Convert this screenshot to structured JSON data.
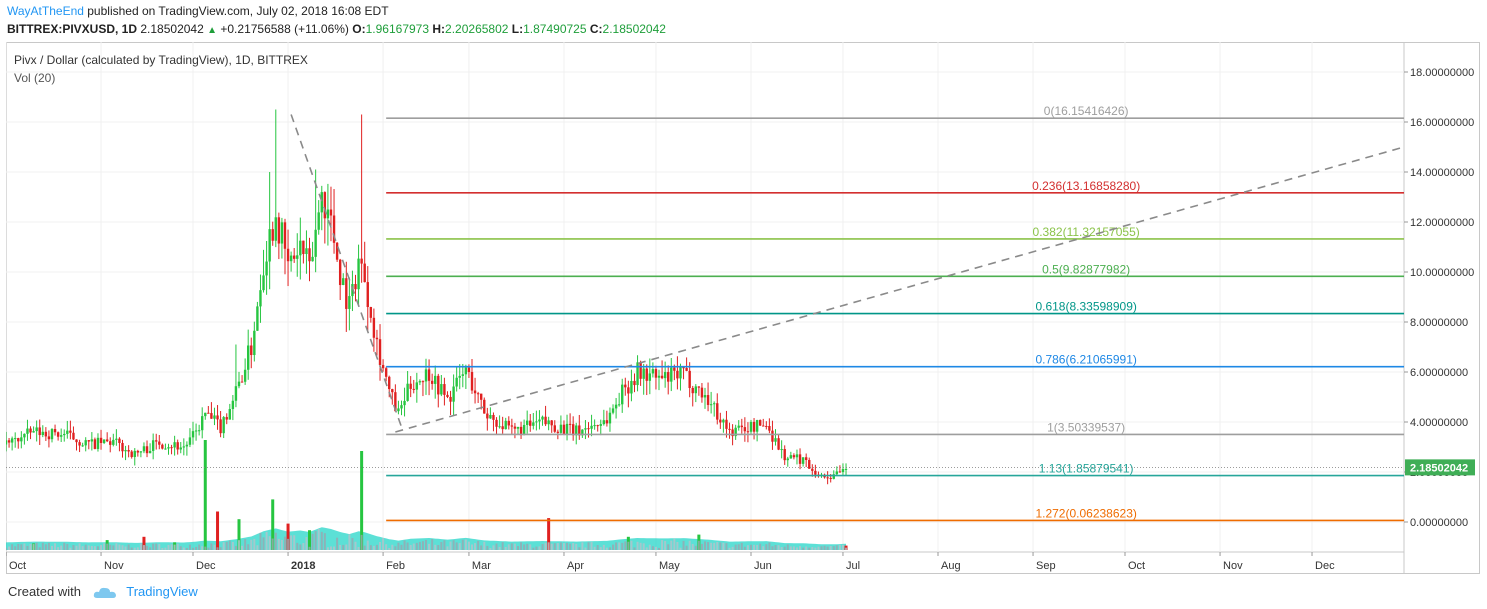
{
  "header": {
    "author": "WayAtTheEnd",
    "published": " published on TradingView.com, July 02, 2018 16:08 EDT",
    "symbol": "BITTREX:PIVXUSD, 1D",
    "last": "2.18502042",
    "arrow": "▲",
    "change": "+0.21756588 (+11.06%)",
    "o_label": "O:",
    "o": "1.96167973",
    "h_label": "H:",
    "h": "2.20265802",
    "l_label": "L:",
    "l": "1.87490725",
    "c_label": "C:",
    "c": "2.18502042"
  },
  "legend": {
    "title": "Pivx / Dollar (calculated by TradingView), 1D, BITTREX",
    "volume": "Vol (20)"
  },
  "footer": {
    "created_with": "Created with",
    "brand": "TradingView",
    "logo_icon": "tradingview-cloud-icon"
  },
  "colors": {
    "up": "#26c540",
    "down": "#e02020",
    "volume_ma": "#26d6c8",
    "grid": "#f0f0f0",
    "price_badge": "#3fae56"
  },
  "chart_data": {
    "type": "candlestick",
    "symbol": "PIVXUSD",
    "interval": "1D",
    "y_axis": {
      "ticks": [
        0,
        2,
        4,
        6,
        8,
        10,
        12,
        14,
        16,
        18
      ],
      "tick_labels": [
        "0.00000000",
        "2.00000000",
        "4.00000000",
        "6.00000000",
        "8.00000000",
        "10.00000000",
        "12.00000000",
        "14.00000000",
        "16.00000000",
        "18.00000000"
      ],
      "range": [
        -1.2,
        19.2
      ],
      "side": "right"
    },
    "x_axis": {
      "start": "2017-10-01",
      "end": "2018-12-31",
      "ticks": [
        {
          "date": "2017-10-01",
          "label": "Oct"
        },
        {
          "date": "2017-11-01",
          "label": "Nov"
        },
        {
          "date": "2017-12-01",
          "label": "Dec"
        },
        {
          "date": "2018-01-01",
          "label": "2018"
        },
        {
          "date": "2018-02-01",
          "label": "Feb"
        },
        {
          "date": "2018-03-01",
          "label": "Mar"
        },
        {
          "date": "2018-04-01",
          "label": "Apr"
        },
        {
          "date": "2018-05-01",
          "label": "May"
        },
        {
          "date": "2018-06-01",
          "label": "Jun"
        },
        {
          "date": "2018-07-01",
          "label": "Jul"
        },
        {
          "date": "2018-08-01",
          "label": "Aug"
        },
        {
          "date": "2018-09-01",
          "label": "Sep"
        },
        {
          "date": "2018-10-01",
          "label": "Oct"
        },
        {
          "date": "2018-11-01",
          "label": "Nov"
        },
        {
          "date": "2018-12-01",
          "label": "Dec"
        }
      ]
    },
    "last_price": {
      "value": 2.18502042,
      "label": "2.18502042"
    },
    "price_path": [
      {
        "date": "2017-10-01",
        "price": 3.1
      },
      {
        "date": "2017-10-10",
        "price": 3.6
      },
      {
        "date": "2017-10-20",
        "price": 3.5
      },
      {
        "date": "2017-10-28",
        "price": 3.1
      },
      {
        "date": "2017-11-05",
        "price": 3.2
      },
      {
        "date": "2017-11-12",
        "price": 2.7
      },
      {
        "date": "2017-11-20",
        "price": 3.2
      },
      {
        "date": "2017-11-28",
        "price": 3.0
      },
      {
        "date": "2017-12-01",
        "price": 3.4
      },
      {
        "date": "2017-12-05",
        "price": 4.3
      },
      {
        "date": "2017-12-10",
        "price": 3.8
      },
      {
        "date": "2017-12-15",
        "price": 5.2
      },
      {
        "date": "2017-12-20",
        "price": 7.0
      },
      {
        "date": "2017-12-24",
        "price": 10.5
      },
      {
        "date": "2017-12-28",
        "price": 12.4
      },
      {
        "date": "2018-01-01",
        "price": 10.2
      },
      {
        "date": "2018-01-05",
        "price": 11.0
      },
      {
        "date": "2018-01-08",
        "price": 10.0
      },
      {
        "date": "2018-01-12",
        "price": 13.2
      },
      {
        "date": "2018-01-15",
        "price": 12.0
      },
      {
        "date": "2018-01-18",
        "price": 10.0
      },
      {
        "date": "2018-01-21",
        "price": 8.6
      },
      {
        "date": "2018-01-24",
        "price": 10.5
      },
      {
        "date": "2018-01-26",
        "price": 9.8
      },
      {
        "date": "2018-01-30",
        "price": 7.2
      },
      {
        "date": "2018-02-03",
        "price": 5.2
      },
      {
        "date": "2018-02-06",
        "price": 4.3
      },
      {
        "date": "2018-02-10",
        "price": 5.5
      },
      {
        "date": "2018-02-16",
        "price": 6.0
      },
      {
        "date": "2018-02-22",
        "price": 4.9
      },
      {
        "date": "2018-02-28",
        "price": 6.1
      },
      {
        "date": "2018-03-06",
        "price": 4.4
      },
      {
        "date": "2018-03-15",
        "price": 3.6
      },
      {
        "date": "2018-03-25",
        "price": 4.0
      },
      {
        "date": "2018-04-05",
        "price": 3.6
      },
      {
        "date": "2018-04-15",
        "price": 4.1
      },
      {
        "date": "2018-04-20",
        "price": 5.2
      },
      {
        "date": "2018-04-25",
        "price": 6.0
      },
      {
        "date": "2018-05-03",
        "price": 5.7
      },
      {
        "date": "2018-05-10",
        "price": 5.9
      },
      {
        "date": "2018-05-18",
        "price": 4.9
      },
      {
        "date": "2018-05-25",
        "price": 3.6
      },
      {
        "date": "2018-06-01",
        "price": 3.8
      },
      {
        "date": "2018-06-06",
        "price": 3.9
      },
      {
        "date": "2018-06-12",
        "price": 2.6
      },
      {
        "date": "2018-06-18",
        "price": 2.5
      },
      {
        "date": "2018-06-24",
        "price": 1.8
      },
      {
        "date": "2018-06-30",
        "price": 1.9
      },
      {
        "date": "2018-07-02",
        "price": 2.185
      }
    ],
    "spikes": [
      {
        "date": "2017-12-15",
        "high": 7.1
      },
      {
        "date": "2017-12-26",
        "high": 14.0
      },
      {
        "date": "2017-12-28",
        "high": 16.5
      },
      {
        "date": "2018-01-10",
        "high": 14.1
      },
      {
        "date": "2018-01-25",
        "high": 16.3
      }
    ],
    "volume": {
      "range_max": 100,
      "bars": [
        {
          "date": "2017-10-10",
          "v": 6
        },
        {
          "date": "2017-11-03",
          "v": 9
        },
        {
          "date": "2017-11-15",
          "v": 12
        },
        {
          "date": "2017-11-25",
          "v": 7
        },
        {
          "date": "2017-12-05",
          "v": 100
        },
        {
          "date": "2017-12-09",
          "v": 35
        },
        {
          "date": "2017-12-16",
          "v": 28
        },
        {
          "date": "2017-12-27",
          "v": 46
        },
        {
          "date": "2018-01-01",
          "v": 24
        },
        {
          "date": "2018-01-08",
          "v": 18
        },
        {
          "date": "2018-01-25",
          "v": 90
        },
        {
          "date": "2018-03-27",
          "v": 29
        },
        {
          "date": "2018-04-22",
          "v": 12
        },
        {
          "date": "2018-05-15",
          "v": 14
        },
        {
          "date": "2018-07-02",
          "v": 4
        }
      ]
    },
    "fibonacci": [
      {
        "ratio": "0",
        "price": 16.15416426,
        "label": "0(16.15416426)",
        "color": "#9e9e9e"
      },
      {
        "ratio": "0.236",
        "price": 13.1685828,
        "label": "0.236(13.16858280)",
        "color": "#d32f2f"
      },
      {
        "ratio": "0.382",
        "price": 11.32157055,
        "label": "0.382(11.32157055)",
        "color": "#8bc34a"
      },
      {
        "ratio": "0.5",
        "price": 9.82877982,
        "label": "0.5(9.82877982)",
        "color": "#4caf50"
      },
      {
        "ratio": "0.618",
        "price": 8.33598909,
        "label": "0.618(8.33598909)",
        "color": "#009688"
      },
      {
        "ratio": "0.786",
        "price": 6.21065991,
        "label": "0.786(6.21065991)",
        "color": "#1e88e5"
      },
      {
        "ratio": "1",
        "price": 3.50339537,
        "label": "1(3.50339537)",
        "color": "#9e9e9e"
      },
      {
        "ratio": "1.13",
        "price": 1.85879541,
        "label": "1.13(1.85879541)",
        "color": "#26a69a"
      },
      {
        "ratio": "1.272",
        "price": 0.06238623,
        "label": "1.272(0.06238623)",
        "color": "#ef6c00"
      }
    ],
    "fib_start_date": "2018-02-02",
    "trendlines": [
      {
        "from": {
          "date": "2018-01-02",
          "price": 16.3
        },
        "to": {
          "date": "2018-02-07",
          "price": 3.8
        },
        "style": "dashed"
      },
      {
        "from": {
          "date": "2018-02-05",
          "price": 3.6
        },
        "to": {
          "date": "2018-12-31",
          "price": 15.0
        },
        "style": "dashed"
      }
    ]
  }
}
